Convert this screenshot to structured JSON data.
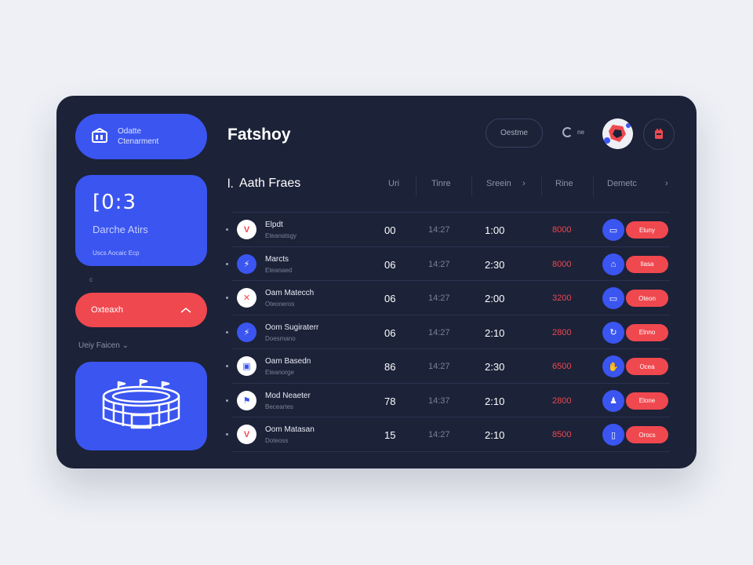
{
  "sidebar": {
    "top_pill": {
      "line1": "Odatte",
      "line2": "Ctenarment"
    },
    "score_card": {
      "score": "[0:3",
      "subtitle": "Darche Atirs",
      "caption": "Uscs Aocaic Ecp"
    },
    "mini_text": "c",
    "red_pill_label": "Oxteaxh",
    "section_label": "Ueiy Faicen ⌄",
    "stadium_icon": "stadium-icon"
  },
  "header": {
    "brand": "Fatshoy",
    "button_label": "Oestme",
    "toggle_label": "ne",
    "avatar_icon": "soccer-ball-icon",
    "notification_icon": "bell-icon"
  },
  "table": {
    "title": "Aath Fraes",
    "marker": "l.",
    "columns": [
      "Uri",
      "Tinre",
      "Sreein",
      "Rine",
      "Demetc"
    ],
    "rows": [
      {
        "name": "Elpdt",
        "sub": "Eteanatsgy",
        "c1": "00",
        "time": "14:27",
        "c3": "1:00",
        "price": "8000",
        "action": "Eluny",
        "logo_bg": "#ffffff",
        "logo_fg": "#f0484f",
        "logo": "V"
      },
      {
        "name": "Marcts",
        "sub": "Eteanaed",
        "c1": "06",
        "time": "14:27",
        "c3": "2:30",
        "price": "8000",
        "action": "Ilasa",
        "logo_bg": "#3a55f0",
        "logo_fg": "#ffffff",
        "logo": "⚡"
      },
      {
        "name": "Oam Matecch",
        "sub": "Oteoneros",
        "c1": "06",
        "time": "14:27",
        "c3": "2:00",
        "price": "3200",
        "action": "Oteon",
        "logo_bg": "#ffffff",
        "logo_fg": "#f0484f",
        "logo": "✕"
      },
      {
        "name": "Oom Sugiraterr",
        "sub": "Doesmano",
        "c1": "06",
        "time": "14:27",
        "c3": "2:10",
        "price": "2800",
        "action": "Elnno",
        "logo_bg": "#3a55f0",
        "logo_fg": "#ffffff",
        "logo": "⚡"
      },
      {
        "name": "Oam Basedn",
        "sub": "Eteanorge",
        "c1": "86",
        "time": "14:27",
        "c3": "2:30",
        "price": "6500",
        "action": "Ocea",
        "logo_bg": "#ffffff",
        "logo_fg": "#3a55f0",
        "logo": "▣"
      },
      {
        "name": "Mod Neaeter",
        "sub": "Beceartes",
        "c1": "78",
        "time": "14:37",
        "c3": "2:10",
        "price": "2800",
        "action": "Elone",
        "logo_bg": "#ffffff",
        "logo_fg": "#3a55f0",
        "logo": "⚑"
      },
      {
        "name": "Oom Matasan",
        "sub": "Doteoss",
        "c1": "15",
        "time": "14:27",
        "c3": "2:10",
        "price": "8500",
        "action": "Orocs",
        "logo_bg": "#ffffff",
        "logo_fg": "#f0484f",
        "logo": "V"
      }
    ]
  },
  "colors": {
    "card": "#1c2238",
    "accent_blue": "#3a55f0",
    "accent_red": "#f0484f",
    "page_bg": "#eef0f6"
  }
}
